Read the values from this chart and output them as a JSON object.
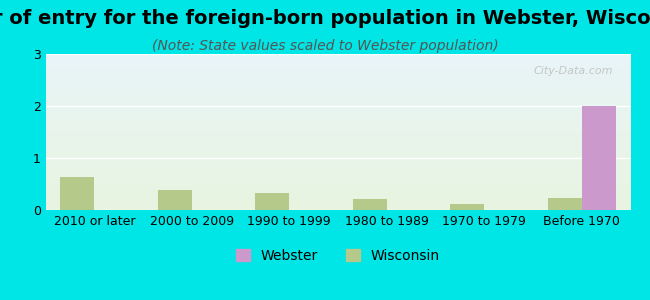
{
  "title": "Year of entry for the foreign-born population in Webster, Wisconsin",
  "subtitle": "(Note: State values scaled to Webster population)",
  "categories": [
    "2010 or later",
    "2000 to 2009",
    "1990 to 1999",
    "1980 to 1989",
    "1970 to 1979",
    "Before 1970"
  ],
  "webster_values": [
    0,
    0,
    0,
    0,
    0,
    2.0
  ],
  "wisconsin_values": [
    0.63,
    0.38,
    0.32,
    0.22,
    0.12,
    0.24
  ],
  "webster_color": "#cc99cc",
  "wisconsin_color": "#b5c98a",
  "background_color": "#00e5e5",
  "plot_bg_top": "#e8f4f8",
  "plot_bg_bottom": "#e8f5e2",
  "ylim": [
    0,
    3
  ],
  "yticks": [
    0,
    1,
    2,
    3
  ],
  "bar_width": 0.35,
  "title_fontsize": 14,
  "subtitle_fontsize": 10,
  "tick_fontsize": 9,
  "legend_fontsize": 10,
  "watermark": "City-Data.com"
}
